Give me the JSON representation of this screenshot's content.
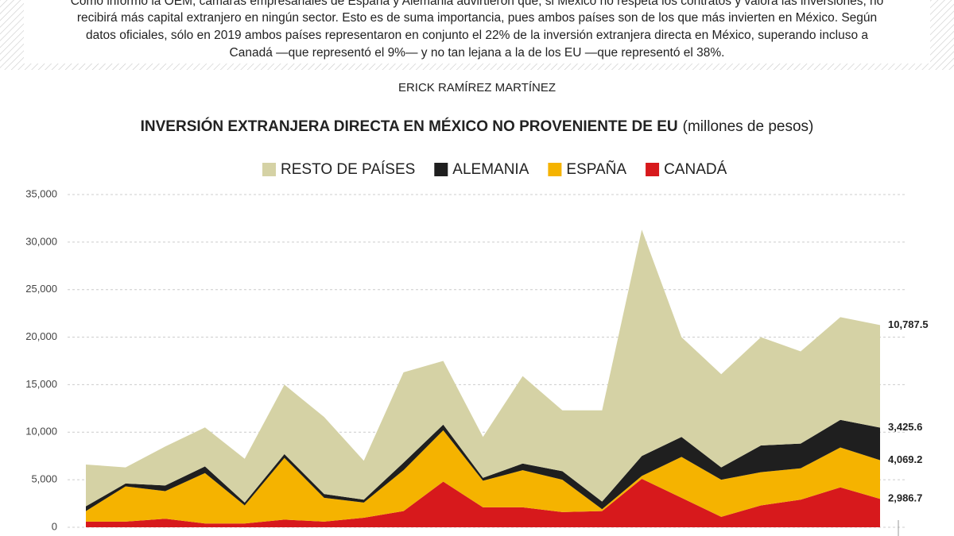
{
  "article": {
    "paragraph": [
      "Como informó la OEM, cámaras empresariales de España y Alemania advirtieron que, si México no respeta los contratos y valora las inversiones, no",
      "recibirá más capital extranjero en ningún sector. Esto es de suma importancia, pues ambos países son de los que más invierten en México. Según",
      "datos oficiales, sólo en 2019 ambos países representaron en conjunto el 22% de la inversión extranjera directa en México, superando incluso a",
      "Canadá —que representó el 9%— y no tan lejana a la de los EU —que representó el 38%."
    ],
    "byline": "ERICK RAMÍREZ MARTÍNEZ"
  },
  "chart_data": {
    "type": "stacked_area",
    "title": "INVERSIÓN EXTRANJERA DIRECTA EN MÉXICO NO PROVENIENTE DE EU",
    "subtitle": "(millones de pesos)",
    "categories": [
      null,
      null,
      null,
      null,
      null,
      null,
      null,
      null,
      null,
      null,
      null,
      null,
      null,
      null,
      null,
      null,
      null,
      null,
      null,
      null,
      null
    ],
    "series": [
      {
        "name": "RESTO DE PAÍSES",
        "color": "#d5d2a5",
        "values": [
          4400,
          1700,
          4100,
          4100,
          4600,
          7300,
          8100,
          4100,
          9500,
          6700,
          4300,
          9200,
          6400,
          9600,
          23800,
          10500,
          9800,
          11400,
          9700,
          10800,
          10787.5
        ],
        "value_labels": [
          null,
          null,
          null,
          null,
          null,
          null,
          null,
          null,
          null,
          null,
          null,
          null,
          null,
          null,
          null,
          null,
          null,
          null,
          null,
          null,
          "10,787.5"
        ]
      },
      {
        "name": "ALEMANIA",
        "color": "#1f1f1f",
        "values": [
          500,
          300,
          600,
          700,
          300,
          400,
          400,
          300,
          800,
          600,
          300,
          700,
          900,
          800,
          2100,
          2100,
          1300,
          2800,
          2600,
          2900,
          3425.6
        ],
        "value_labels": [
          null,
          null,
          null,
          null,
          null,
          null,
          null,
          null,
          null,
          null,
          null,
          null,
          null,
          null,
          null,
          null,
          null,
          null,
          null,
          null,
          "3,425.6"
        ]
      },
      {
        "name": "ESPAÑA",
        "color": "#f5b300",
        "values": [
          1100,
          3700,
          2900,
          5300,
          1900,
          6500,
          2500,
          1600,
          4300,
          5400,
          2800,
          3900,
          3400,
          200,
          300,
          4300,
          3900,
          3500,
          3300,
          4200,
          4069.2
        ],
        "value_labels": [
          null,
          null,
          null,
          null,
          null,
          null,
          null,
          null,
          null,
          null,
          null,
          null,
          null,
          null,
          null,
          null,
          null,
          null,
          null,
          null,
          "4,069.2"
        ]
      },
      {
        "name": "CANADÁ",
        "color": "#d7191c",
        "values": [
          600,
          600,
          900,
          400,
          400,
          800,
          600,
          1000,
          1700,
          4800,
          2100,
          2100,
          1600,
          1700,
          5100,
          3100,
          1100,
          2300,
          2900,
          4200,
          2986.7
        ],
        "value_labels": [
          null,
          null,
          null,
          null,
          null,
          null,
          null,
          null,
          null,
          null,
          null,
          null,
          null,
          null,
          null,
          null,
          null,
          null,
          null,
          null,
          "2,986.7"
        ]
      }
    ],
    "ylim": [
      0,
      35000
    ],
    "yticks": [
      0,
      {
        "value": 5000,
        "label": "5,000"
      },
      {
        "value": 10000,
        "label": "10,000"
      },
      {
        "value": 15000,
        "label": "15,000"
      },
      {
        "value": 20000,
        "label": "20,000"
      },
      {
        "value": 25000,
        "label": "25,000"
      },
      {
        "value": 30000,
        "label": "30,000"
      },
      {
        "value": 35000,
        "label": "35,000"
      }
    ],
    "grid": true,
    "stacked": true,
    "legend": "top"
  }
}
